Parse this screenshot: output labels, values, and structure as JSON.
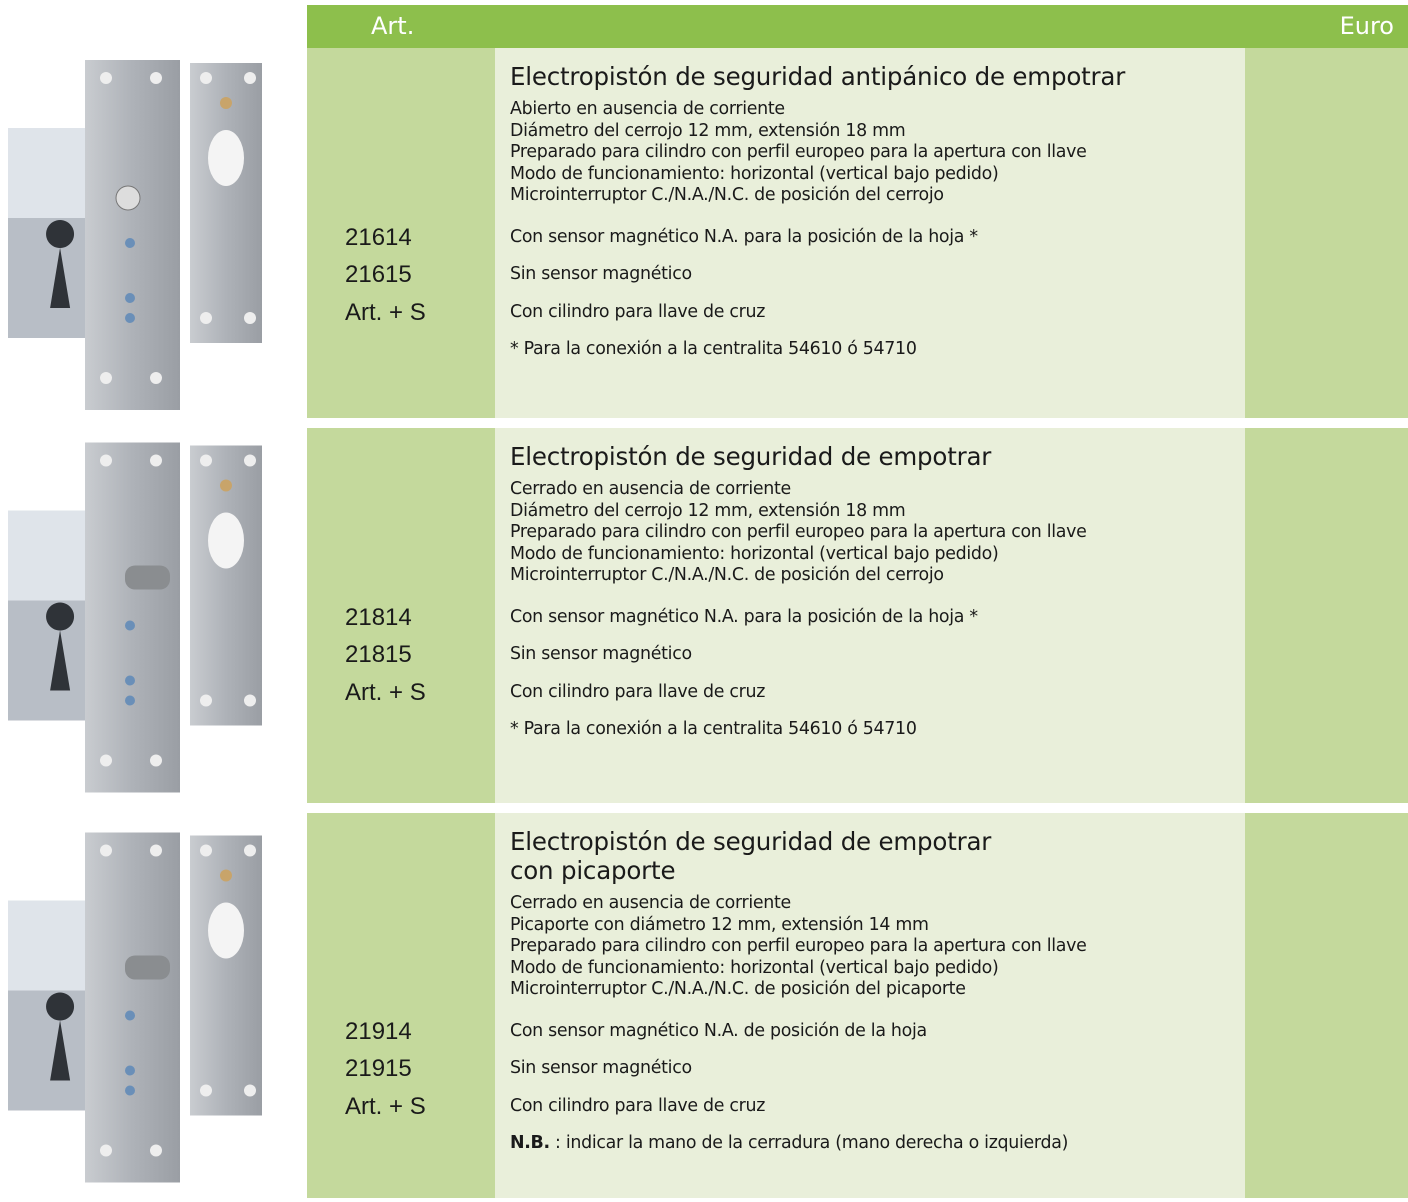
{
  "header": {
    "art": "Art.",
    "euro": "Euro"
  },
  "products": [
    {
      "title_lines": [
        "Electropistón de seguridad antipánico de empotrar"
      ],
      "description": [
        "Abierto en ausencia de corriente",
        "Diámetro del cerrojo 12 mm, extensión 18 mm",
        "Preparado para cilindro con perfil europeo para la apertura con llave",
        "Modo de funcionamiento: horizontal (vertical bajo pedido)",
        "Microinterruptor C./N.A./N.C. de posición del cerrojo"
      ],
      "options": [
        {
          "code": "21614",
          "text": "Con sensor magnético N.A. para la posición de la hoja *"
        },
        {
          "code": "21615",
          "text": "Sin sensor magnético"
        },
        {
          "code": "Art. + S",
          "text": "Con cilindro para llave de cruz"
        }
      ],
      "note": "* Para la conexión a la centralita 54610 ó 54710"
    },
    {
      "title_lines": [
        "Electropistón de seguridad de empotrar"
      ],
      "description": [
        "Cerrado en ausencia de corriente",
        "Diámetro del cerrojo 12 mm, extensión 18 mm",
        "Preparado para cilindro con perfil europeo para la apertura con llave",
        "Modo de funcionamiento: horizontal (vertical bajo pedido)",
        "Microinterruptor C./N.A./N.C. de posición del cerrojo"
      ],
      "options": [
        {
          "code": "21814",
          "text": "Con sensor magnético N.A. para la posición de la hoja *"
        },
        {
          "code": "21815",
          "text": "Sin sensor magnético"
        },
        {
          "code": "Art. + S",
          "text": "Con cilindro para llave de cruz"
        }
      ],
      "note": "* Para la conexión a la centralita 54610 ó 54710"
    },
    {
      "title_lines": [
        "Electropistón de seguridad de empotrar",
        "con picaporte"
      ],
      "description": [
        "Cerrado en ausencia de corriente",
        "Picaporte con diámetro 12 mm, extensión 14 mm",
        "Preparado para cilindro con perfil europeo para la apertura con llave",
        "Modo de funcionamiento: horizontal (vertical bajo pedido)",
        "Microinterruptor C./N.A./N.C. de posición del picaporte"
      ],
      "options": [
        {
          "code": "21914",
          "text": "Con sensor magnético N.A. de posición de la hoja"
        },
        {
          "code": "21915",
          "text": "Sin sensor magnético"
        },
        {
          "code": "Art. + S",
          "text": "Con cilindro para llave de cruz"
        }
      ],
      "note_label": "N.B.",
      "note": " : indicar la mano de la cerradura (mano derecha o izquierda)"
    }
  ]
}
